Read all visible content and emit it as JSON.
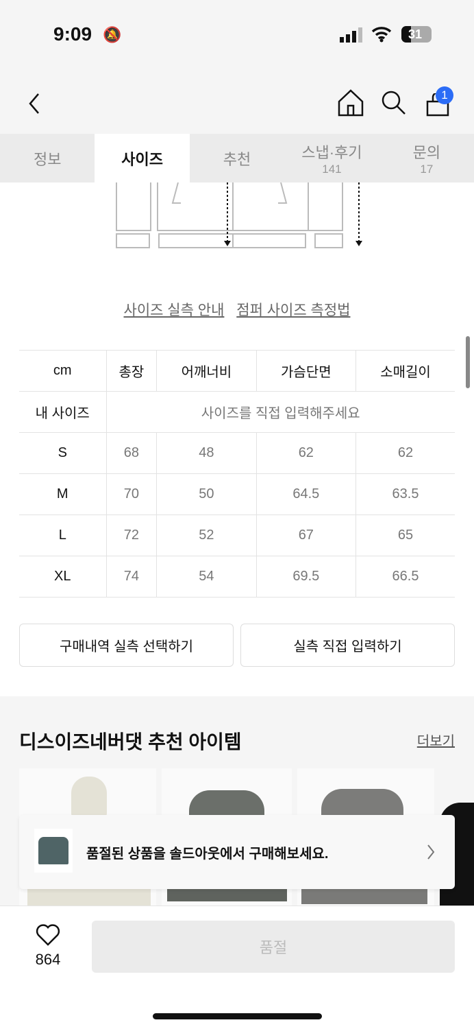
{
  "status": {
    "time": "9:09",
    "battery": "31"
  },
  "header": {
    "cart_count": "1"
  },
  "tabs": [
    {
      "label": "정보"
    },
    {
      "label": "사이즈",
      "active": true
    },
    {
      "label": "추천"
    },
    {
      "label": "스냅·후기",
      "count": "141"
    },
    {
      "label": "문의",
      "count": "17"
    }
  ],
  "links": {
    "size_guide": "사이즈 실측 안내",
    "measure": "점퍼 사이즈 측정법"
  },
  "size_table": {
    "headers": [
      "cm",
      "총장",
      "어깨너비",
      "가슴단면",
      "소매길이"
    ],
    "my_size_label": "내 사이즈",
    "my_size_prompt": "사이즈를 직접 입력해주세요",
    "rows": [
      [
        "S",
        "68",
        "48",
        "62",
        "62"
      ],
      [
        "M",
        "70",
        "50",
        "64.5",
        "63.5"
      ],
      [
        "L",
        "72",
        "52",
        "67",
        "65"
      ],
      [
        "XL",
        "74",
        "54",
        "69.5",
        "66.5"
      ]
    ]
  },
  "buttons": {
    "purchase_history": "구매내역 실측 선택하기",
    "manual_input": "실측 직접 입력하기"
  },
  "recommend": {
    "title": "디스이즈네버댓 추천 아이템",
    "more": "더보기"
  },
  "toast": {
    "text": "품절된 상품을 솔드아웃에서 구매해보세요."
  },
  "bottom": {
    "likes": "864",
    "soldout": "품절"
  },
  "colors": {
    "badge": "#2b6cf6"
  }
}
